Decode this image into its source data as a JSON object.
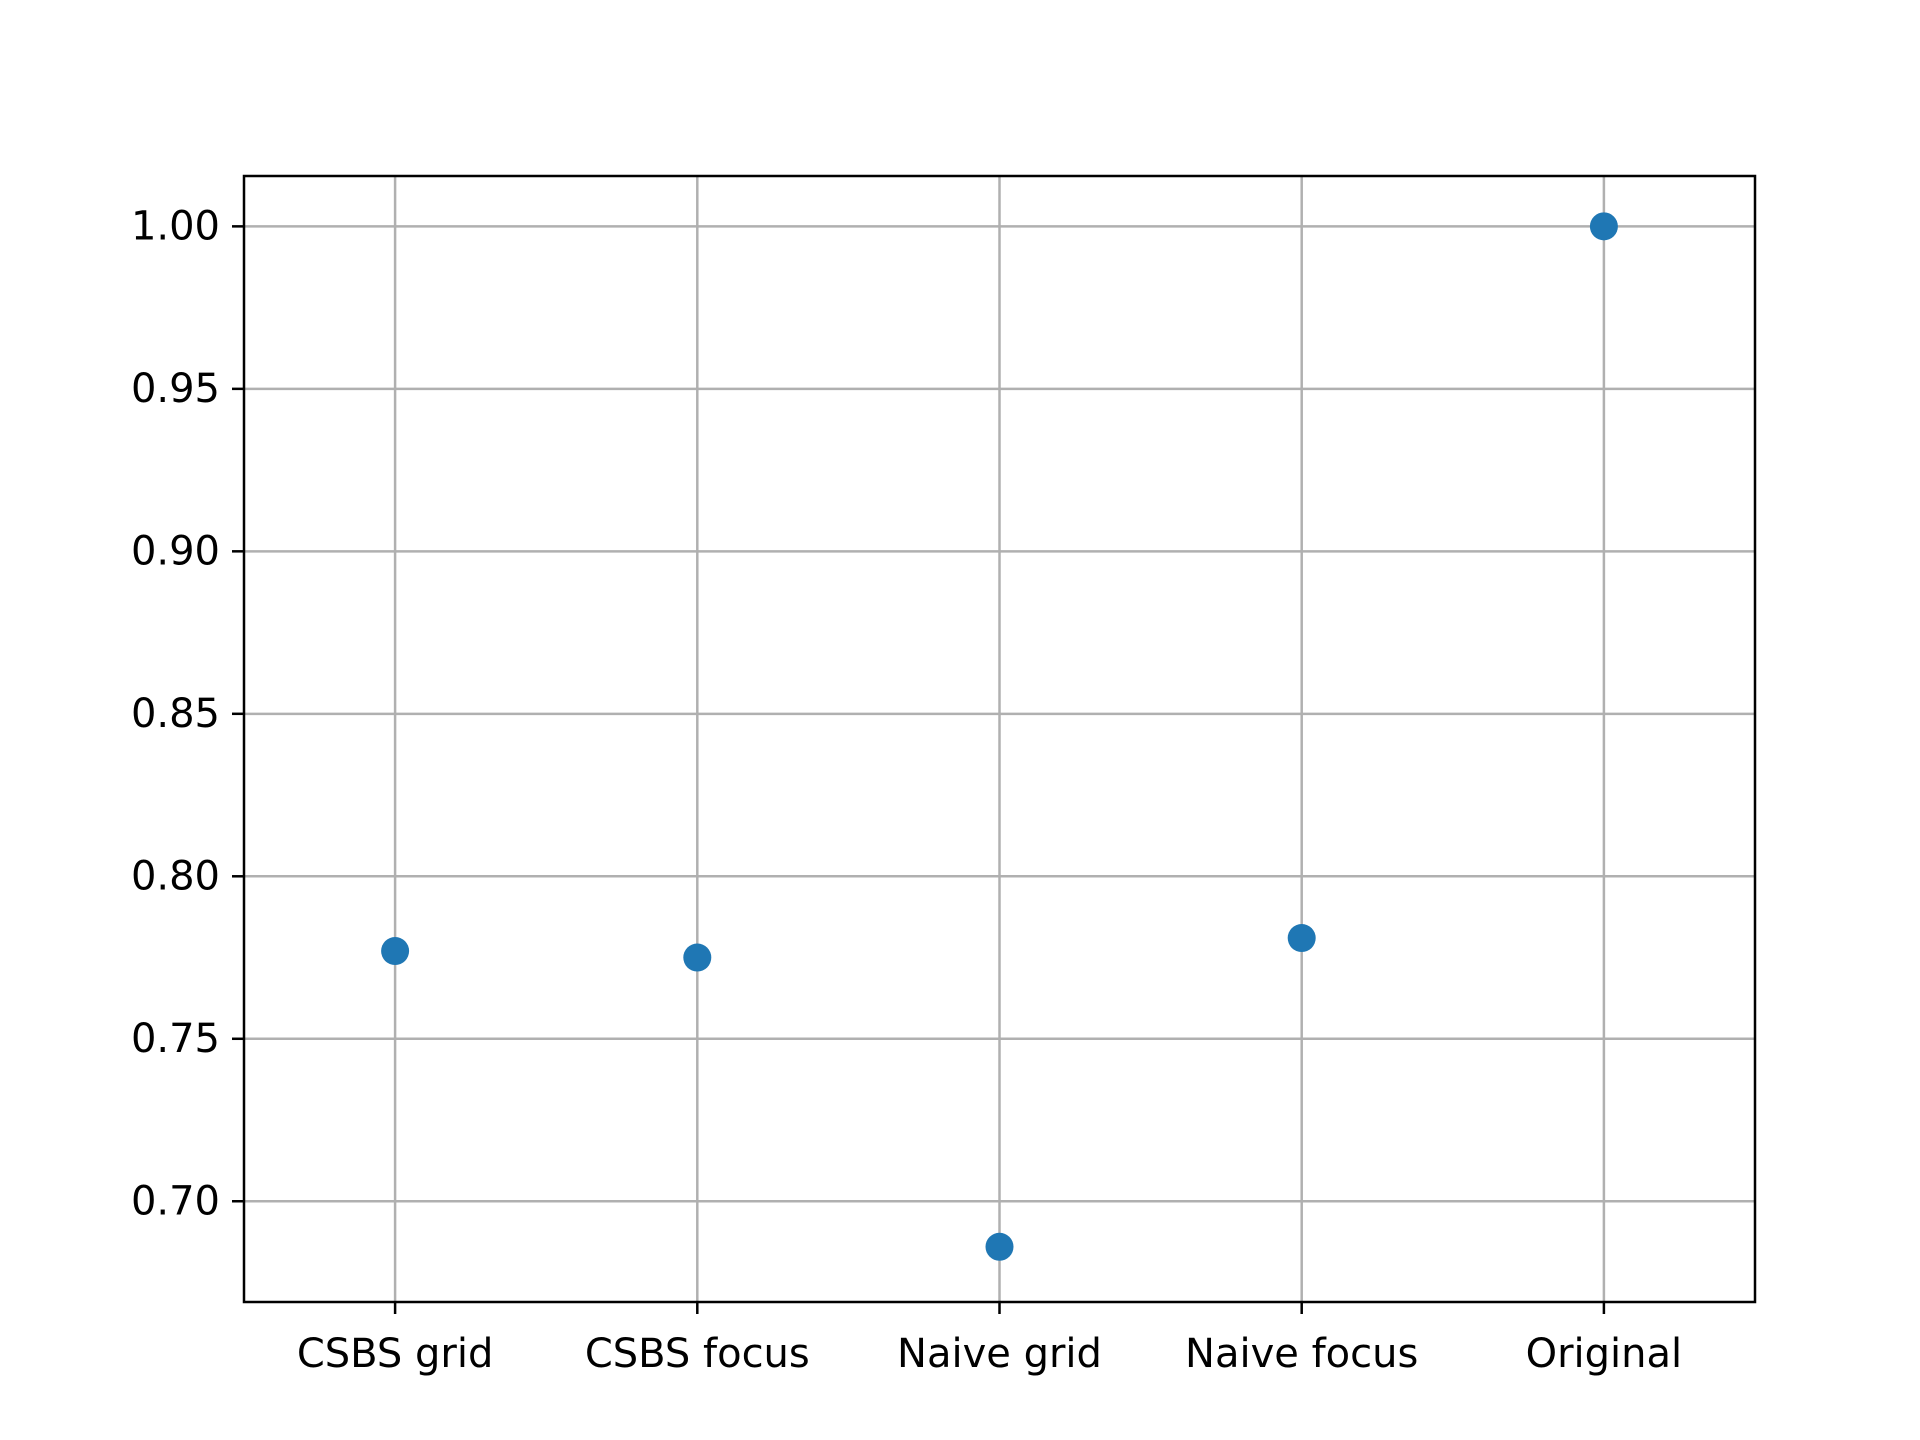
{
  "chart_data": {
    "type": "scatter",
    "title": "",
    "xlabel": "",
    "ylabel": "",
    "categories": [
      "CSBS grid",
      "CSBS focus",
      "Naive grid",
      "Naive focus",
      "Original"
    ],
    "series": [
      {
        "values": [
          0.777,
          0.775,
          0.686,
          0.781,
          1.0
        ]
      }
    ],
    "ylim": [
      0.669,
      1.0155
    ],
    "yticks": [
      0.7,
      0.75,
      0.8,
      0.85,
      0.9,
      0.95,
      1.0
    ],
    "ytick_labels": [
      "0.70",
      "0.75",
      "0.80",
      "0.85",
      "0.90",
      "0.95",
      "1.00"
    ],
    "grid": true,
    "legend": "none",
    "colors": {
      "marker": "#1f77b4",
      "grid": "#b0b0b0",
      "axes": "#000000"
    }
  }
}
